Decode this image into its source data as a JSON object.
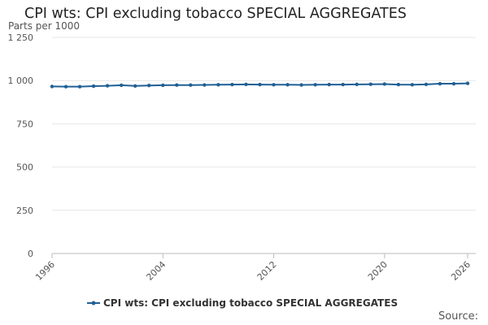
{
  "chart_data": {
    "type": "line",
    "title": "CPI wts: CPI excluding tobacco SPECIAL AGGREGATES",
    "ylabel": "Parts per 1000",
    "xlabel": "",
    "source_label": "Source:",
    "ylim": [
      0,
      1250
    ],
    "xlim": [
      1996,
      2026
    ],
    "y_ticks": [
      0,
      250,
      500,
      750,
      1000,
      1250
    ],
    "y_tick_labels": [
      "0",
      "250",
      "500",
      "750",
      "1 000",
      "1 250"
    ],
    "x_ticks": [
      1996,
      2004,
      2012,
      2020,
      2026
    ],
    "x_tick_labels": [
      "1996",
      "2004",
      "2012",
      "2020",
      "2026"
    ],
    "grid": true,
    "legend_position": "bottom",
    "colors": {
      "series": "#206095",
      "grid": "#e6e6e6",
      "axis": "#bbbbbb"
    },
    "series": [
      {
        "name": "CPI wts: CPI excluding tobacco SPECIAL AGGREGATES",
        "x": [
          1996,
          1997,
          1998,
          1999,
          2000,
          2001,
          2002,
          2003,
          2004,
          2005,
          2006,
          2007,
          2008,
          2009,
          2010,
          2011,
          2012,
          2013,
          2014,
          2015,
          2016,
          2017,
          2018,
          2019,
          2020,
          2021,
          2022,
          2023,
          2024,
          2025,
          2026
        ],
        "values": [
          966,
          965,
          965,
          968,
          970,
          973,
          969,
          972,
          973,
          974,
          974,
          975,
          976,
          977,
          978,
          977,
          976,
          976,
          975,
          976,
          977,
          977,
          978,
          979,
          980,
          977,
          976,
          978,
          982,
          982,
          984
        ]
      }
    ]
  }
}
